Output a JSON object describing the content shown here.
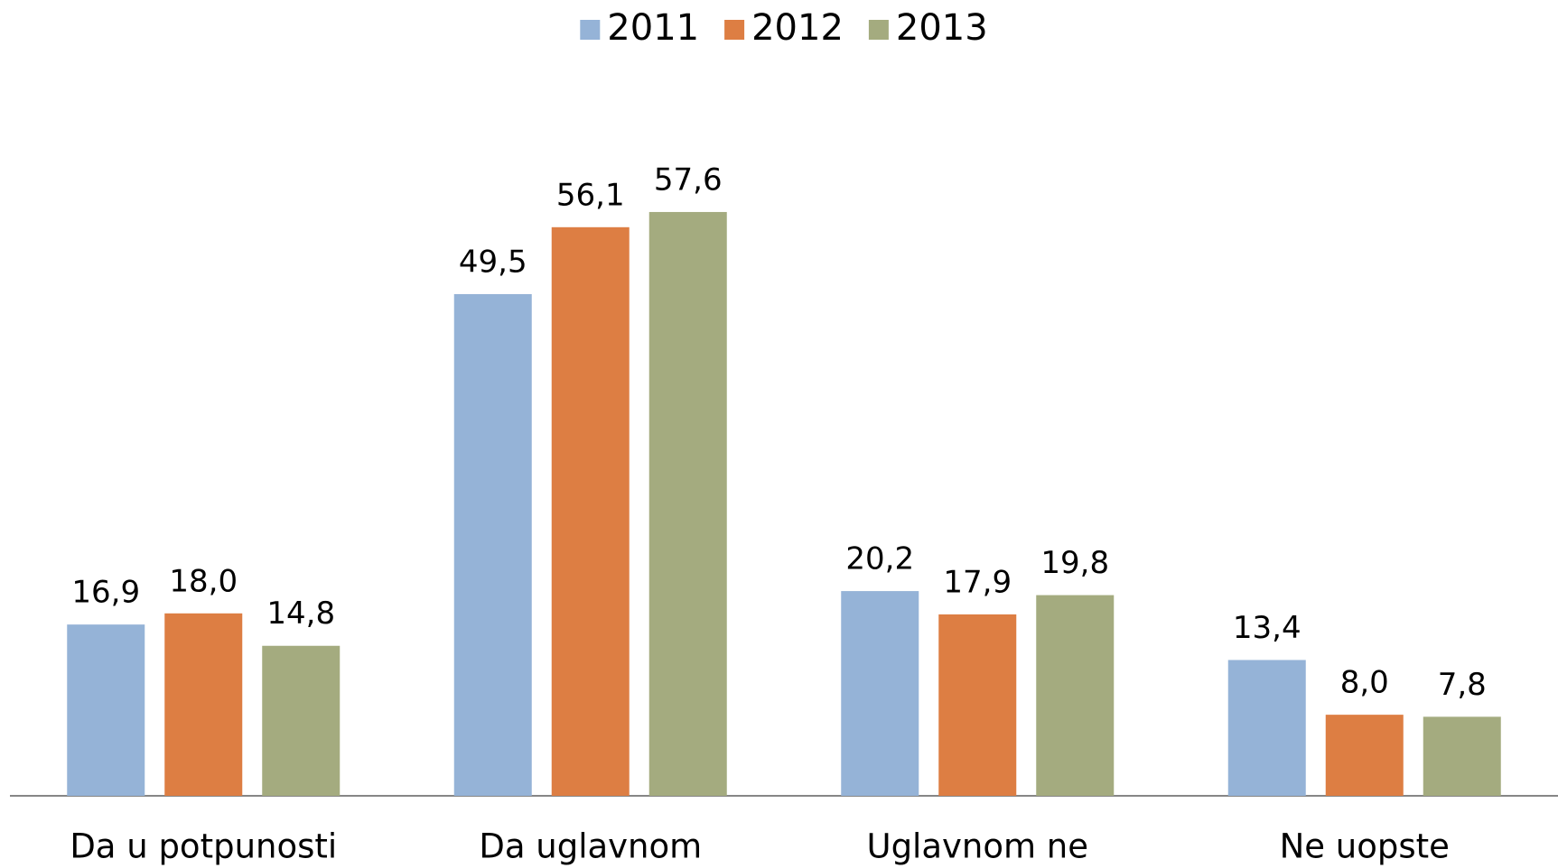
{
  "chart_data": {
    "type": "bar",
    "categories": [
      "Da u potpunosti",
      "Da uglavnom",
      "Uglavnom ne",
      "Ne uopste"
    ],
    "series": [
      {
        "name": "2011",
        "color": "#95b3d7",
        "values": [
          16.9,
          49.5,
          20.2,
          13.4
        ],
        "value_labels": [
          "16,9",
          "49,5",
          "20,2",
          "13,4"
        ]
      },
      {
        "name": "2012",
        "color": "#dd7e43",
        "values": [
          18.0,
          56.1,
          17.9,
          8.0
        ],
        "value_labels": [
          "18,0",
          "56,1",
          "17,9",
          "8,0"
        ]
      },
      {
        "name": "2013",
        "color": "#a4ab7f",
        "values": [
          14.8,
          57.6,
          19.8,
          7.8
        ],
        "value_labels": [
          "14,8",
          "57,6",
          "19,8",
          "7,8"
        ]
      }
    ],
    "ylim": [
      0,
      60
    ],
    "legend": "top"
  }
}
